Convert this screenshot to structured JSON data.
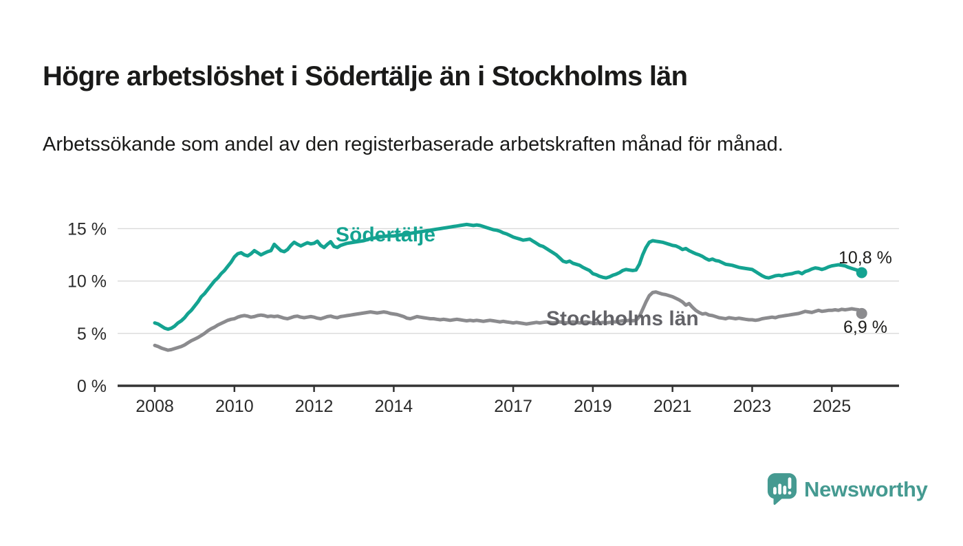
{
  "header": {
    "title": "Högre arbetslöshet i Södertälje än i Stockholms län",
    "subtitle": "Arbetssökande som andel av den registerbaserade arbetskraften månad för månad."
  },
  "chart_data": {
    "type": "line",
    "title": "Högre arbetslöshet i Södertälje än i Stockholms län",
    "subtitle": "Arbetssökande som andel av den registerbaserade arbetskraften månad för månad.",
    "x_unit": "month",
    "x_start": "2008-01",
    "x_end": "2025-10",
    "xlim": [
      2007.05,
      2026.7
    ],
    "ylim": [
      0,
      16
    ],
    "grid": "horizontal",
    "legend_position": "inline-labels",
    "x_ticks": [
      2008,
      2010,
      2012,
      2014,
      2017,
      2019,
      2021,
      2023,
      2025
    ],
    "x_tick_labels": [
      "2008",
      "2010",
      "2012",
      "2014",
      "2017",
      "2019",
      "2021",
      "2023",
      "2025"
    ],
    "y_ticks": [
      0,
      5,
      10,
      15
    ],
    "y_tick_labels": [
      "0 %",
      "5 %",
      "10 %",
      "15 %"
    ],
    "series": [
      {
        "name": "Södertälje",
        "color": "#14a391",
        "label_color": "#14a391",
        "end_label": "10,8 %",
        "end_value": 10.8,
        "values": [
          6.0,
          5.9,
          5.7,
          5.5,
          5.4,
          5.5,
          5.7,
          6.0,
          6.2,
          6.5,
          6.9,
          7.2,
          7.6,
          8.0,
          8.5,
          8.8,
          9.2,
          9.6,
          10.0,
          10.3,
          10.7,
          11.0,
          11.4,
          11.8,
          12.3,
          12.6,
          12.7,
          12.5,
          12.4,
          12.6,
          12.9,
          12.7,
          12.5,
          12.65,
          12.8,
          12.9,
          13.5,
          13.2,
          12.9,
          12.8,
          13.0,
          13.4,
          13.7,
          13.5,
          13.35,
          13.5,
          13.65,
          13.55,
          13.6,
          13.8,
          13.4,
          13.2,
          13.5,
          13.75,
          13.3,
          13.2,
          13.4,
          13.5,
          13.6,
          13.65,
          13.7,
          13.75,
          13.8,
          13.85,
          13.95,
          14.05,
          14.1,
          14.15,
          14.2,
          14.25,
          14.3,
          14.3,
          14.3,
          14.35,
          14.4,
          14.45,
          14.5,
          14.55,
          14.6,
          14.65,
          14.7,
          14.75,
          14.8,
          14.85,
          14.9,
          14.95,
          15.0,
          15.05,
          15.1,
          15.15,
          15.2,
          15.25,
          15.3,
          15.35,
          15.4,
          15.35,
          15.3,
          15.35,
          15.3,
          15.2,
          15.1,
          15.0,
          14.9,
          14.85,
          14.75,
          14.6,
          14.5,
          14.35,
          14.2,
          14.1,
          14.0,
          13.9,
          13.95,
          14.0,
          13.8,
          13.6,
          13.4,
          13.3,
          13.1,
          12.9,
          12.7,
          12.5,
          12.2,
          11.9,
          11.8,
          11.9,
          11.7,
          11.6,
          11.5,
          11.3,
          11.15,
          11.0,
          10.7,
          10.6,
          10.45,
          10.35,
          10.3,
          10.4,
          10.55,
          10.65,
          10.8,
          11.0,
          11.1,
          11.05,
          11.0,
          11.05,
          11.6,
          12.5,
          13.2,
          13.7,
          13.85,
          13.8,
          13.75,
          13.7,
          13.6,
          13.5,
          13.4,
          13.35,
          13.2,
          13.0,
          13.1,
          12.9,
          12.75,
          12.6,
          12.5,
          12.35,
          12.15,
          12.0,
          12.1,
          11.95,
          11.9,
          11.75,
          11.6,
          11.55,
          11.5,
          11.4,
          11.3,
          11.25,
          11.2,
          11.15,
          11.1,
          10.9,
          10.7,
          10.5,
          10.35,
          10.3,
          10.4,
          10.5,
          10.55,
          10.5,
          10.6,
          10.65,
          10.7,
          10.8,
          10.85,
          10.7,
          10.9,
          11.0,
          11.15,
          11.25,
          11.2,
          11.1,
          11.2,
          11.35,
          11.45,
          11.5,
          11.55,
          11.5,
          11.45,
          11.3,
          11.2,
          11.1,
          11.0,
          10.8
        ]
      },
      {
        "name": "Stockholms län",
        "color": "#8b8b8e",
        "label_color": "#636368",
        "end_label": "6,9 %",
        "end_value": 6.9,
        "values": [
          3.85,
          3.75,
          3.6,
          3.5,
          3.4,
          3.45,
          3.55,
          3.65,
          3.75,
          3.9,
          4.1,
          4.3,
          4.45,
          4.6,
          4.8,
          5.0,
          5.25,
          5.45,
          5.6,
          5.8,
          5.95,
          6.1,
          6.25,
          6.35,
          6.4,
          6.55,
          6.65,
          6.7,
          6.65,
          6.55,
          6.6,
          6.7,
          6.75,
          6.7,
          6.6,
          6.65,
          6.6,
          6.65,
          6.55,
          6.45,
          6.4,
          6.5,
          6.6,
          6.65,
          6.55,
          6.5,
          6.55,
          6.6,
          6.55,
          6.45,
          6.4,
          6.5,
          6.6,
          6.65,
          6.55,
          6.5,
          6.6,
          6.65,
          6.7,
          6.75,
          6.8,
          6.85,
          6.9,
          6.95,
          7.0,
          7.05,
          7.0,
          6.95,
          7.0,
          7.05,
          7.0,
          6.9,
          6.85,
          6.8,
          6.7,
          6.6,
          6.45,
          6.4,
          6.5,
          6.6,
          6.55,
          6.5,
          6.45,
          6.4,
          6.4,
          6.35,
          6.3,
          6.35,
          6.3,
          6.25,
          6.3,
          6.35,
          6.3,
          6.25,
          6.2,
          6.25,
          6.2,
          6.25,
          6.2,
          6.15,
          6.2,
          6.25,
          6.2,
          6.15,
          6.1,
          6.15,
          6.1,
          6.05,
          6.0,
          6.05,
          6.0,
          5.95,
          5.9,
          5.95,
          6.0,
          6.05,
          6.0,
          6.05,
          6.1,
          6.05,
          6.0,
          6.05,
          6.1,
          6.05,
          6.0,
          6.05,
          6.1,
          6.05,
          6.0,
          6.05,
          6.1,
          6.05,
          6.0,
          5.95,
          6.0,
          6.05,
          6.0,
          6.05,
          6.1,
          6.1,
          6.15,
          6.2,
          6.2,
          6.25,
          6.2,
          6.25,
          6.6,
          7.3,
          8.0,
          8.6,
          8.9,
          8.95,
          8.85,
          8.75,
          8.7,
          8.6,
          8.5,
          8.35,
          8.2,
          8.0,
          7.7,
          7.85,
          7.5,
          7.2,
          7.0,
          6.85,
          6.9,
          6.75,
          6.7,
          6.6,
          6.5,
          6.45,
          6.4,
          6.5,
          6.45,
          6.4,
          6.45,
          6.4,
          6.35,
          6.3,
          6.3,
          6.25,
          6.3,
          6.4,
          6.45,
          6.5,
          6.55,
          6.5,
          6.6,
          6.65,
          6.7,
          6.75,
          6.8,
          6.85,
          6.9,
          7.0,
          7.1,
          7.05,
          7.0,
          7.1,
          7.2,
          7.1,
          7.15,
          7.2,
          7.2,
          7.25,
          7.2,
          7.3,
          7.25,
          7.3,
          7.35,
          7.3,
          7.25,
          6.9
        ]
      }
    ]
  },
  "branding": {
    "logo_text": "Newsworthy",
    "logo_color": "#459a91",
    "logo_icon": "speech-bubble-bar-chart-icon"
  },
  "colors": {
    "background": "#ffffff",
    "title_text": "#1a1a19",
    "gridline": "#d9d9d9",
    "axis": "#333333",
    "sodertalje_teal": "#14a391",
    "stockholm_gray": "#8b8b8e"
  }
}
